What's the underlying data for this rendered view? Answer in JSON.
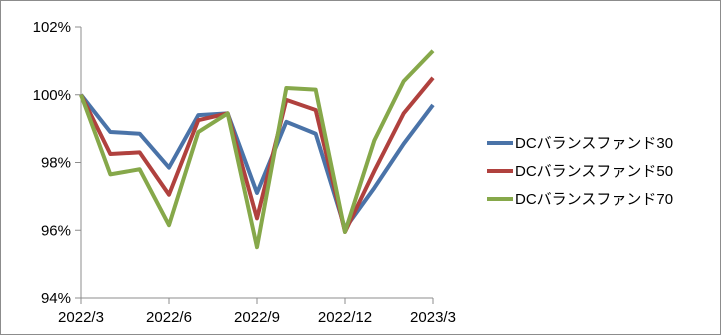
{
  "chart_data": {
    "type": "line",
    "x": [
      "2022/3",
      "2022/4",
      "2022/5",
      "2022/6",
      "2022/7",
      "2022/8",
      "2022/9",
      "2022/10",
      "2022/11",
      "2022/12",
      "2023/1",
      "2023/2",
      "2023/3"
    ],
    "x_tick_labels": [
      "2022/3",
      "2022/6",
      "2022/9",
      "2022/12",
      "2023/3"
    ],
    "y_tick_labels": [
      "94%",
      "96%",
      "98%",
      "100%",
      "102%"
    ],
    "y_ticks": [
      94,
      96,
      98,
      100,
      102
    ],
    "ylim": [
      94,
      102
    ],
    "y_unit": "%",
    "grid": false,
    "legend_position": "right",
    "series": [
      {
        "name": "DCバランスファンド30",
        "color": "#4a73a8",
        "values": [
          100.0,
          98.9,
          98.85,
          97.85,
          99.4,
          99.45,
          97.1,
          99.2,
          98.85,
          96.05,
          97.25,
          98.55,
          99.7
        ]
      },
      {
        "name": "DCバランスファンド50",
        "color": "#b0413e",
        "values": [
          100.0,
          98.25,
          98.3,
          97.05,
          99.25,
          99.45,
          96.35,
          99.85,
          99.55,
          95.95,
          97.75,
          99.45,
          100.5
        ]
      },
      {
        "name": "DCバランスファンド70",
        "color": "#86a84a",
        "values": [
          100.0,
          97.65,
          97.8,
          96.15,
          98.9,
          99.45,
          95.5,
          100.2,
          100.15,
          95.95,
          98.65,
          100.4,
          101.3
        ]
      }
    ]
  }
}
